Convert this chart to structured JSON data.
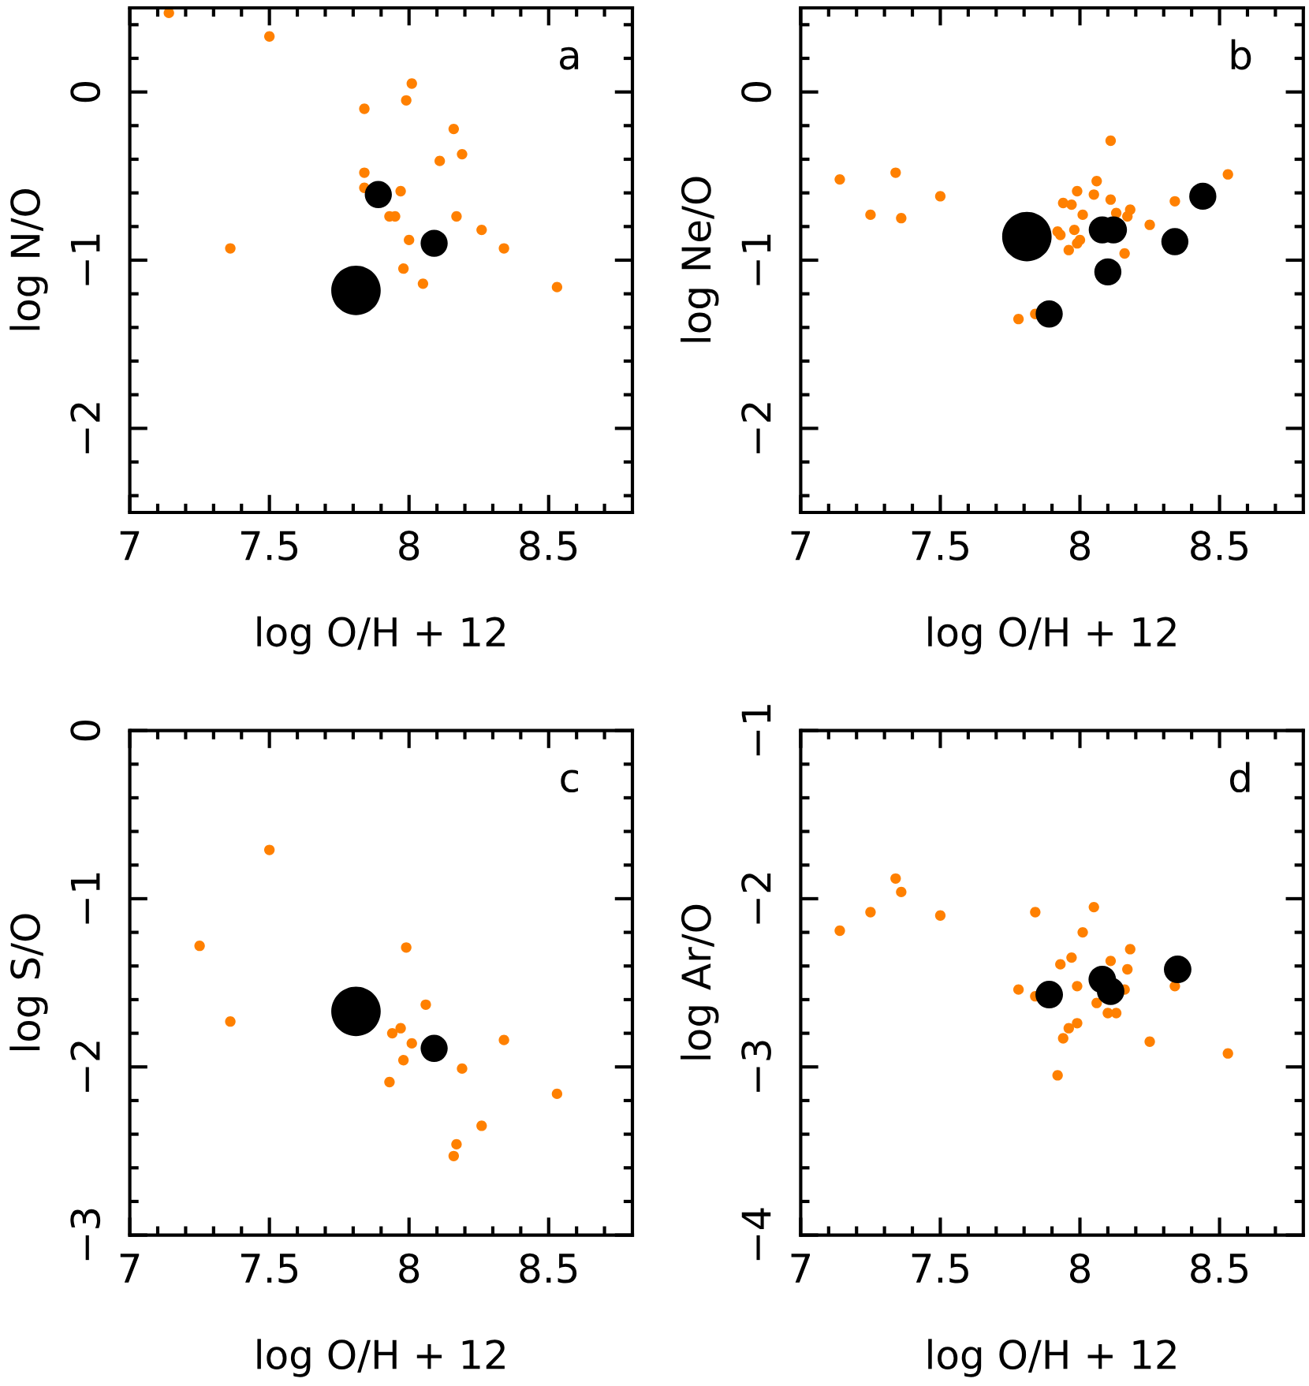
{
  "chart_data": [
    {
      "type": "scatter",
      "xlabel": "log O/H + 12",
      "ylabel": "log N/O",
      "annotations": [
        "a"
      ],
      "marker": "circle",
      "xlim": [
        7,
        8.8
      ],
      "ylim": [
        -2.5,
        0.5
      ],
      "xticks": [
        7,
        {
          "value": 7.1,
          "label": null
        },
        {
          "value": 7.2,
          "label": null
        },
        {
          "value": 7.3,
          "label": null
        },
        {
          "value": 7.4,
          "label": null
        },
        7.5,
        {
          "value": 7.6,
          "label": null
        },
        {
          "value": 7.7,
          "label": null
        },
        {
          "value": 7.8,
          "label": null
        },
        {
          "value": 7.9,
          "label": null
        },
        8,
        {
          "value": 8.1,
          "label": null
        },
        {
          "value": 8.2,
          "label": null
        },
        {
          "value": 8.3,
          "label": null
        },
        {
          "value": 8.4,
          "label": null
        },
        8.5,
        {
          "value": 8.6,
          "label": null
        },
        {
          "value": 8.7,
          "label": null
        }
      ],
      "yticks": [
        {
          "value": -2.4,
          "label": null
        },
        {
          "value": -2.2,
          "label": null
        },
        {
          "value": -2,
          "label": "−2"
        },
        {
          "value": -1.8,
          "label": null
        },
        {
          "value": -1.6,
          "label": null
        },
        {
          "value": -1.4,
          "label": null
        },
        {
          "value": -1.2,
          "label": null
        },
        {
          "value": -1,
          "label": "−1"
        },
        {
          "value": -0.8,
          "label": null
        },
        {
          "value": -0.6,
          "label": null
        },
        {
          "value": -0.4,
          "label": null
        },
        {
          "value": -0.2,
          "label": null
        },
        0,
        {
          "value": 0.2,
          "label": null
        },
        {
          "value": 0.4,
          "label": null
        }
      ],
      "series": [
        {
          "color": "#ff8000",
          "x": [
            7.14,
            7.5,
            8.01,
            7.99,
            7.84,
            8.16,
            8.19,
            8.11,
            7.84,
            7.84,
            7.97,
            7.93,
            7.95,
            8.17,
            8.26,
            8.0,
            8.34,
            7.36,
            7.98,
            8.05,
            8.53
          ],
          "values": [
            0.47,
            0.33,
            0.05,
            -0.05,
            -0.1,
            -0.22,
            -0.37,
            -0.41,
            -0.48,
            -0.57,
            -0.59,
            -0.74,
            -0.74,
            -0.74,
            -0.82,
            -0.88,
            -0.93,
            -0.93,
            -1.05,
            -1.14,
            -1.16
          ]
        },
        {
          "type": "bubble",
          "color": "#000000",
          "x": [
            7.81,
            7.89,
            8.09
          ],
          "values": [
            -1.18,
            -0.61,
            -0.9
          ],
          "sizes": [
            1,
            0.3,
            0.3
          ]
        }
      ]
    },
    {
      "type": "scatter",
      "xlabel": "log O/H + 12",
      "ylabel": "log Ne/O",
      "annotations": [
        "b"
      ],
      "marker": "circle",
      "xlim": [
        7,
        8.8
      ],
      "ylim": [
        -2.5,
        0.5
      ],
      "xticks": [
        7,
        {
          "value": 7.1,
          "label": null
        },
        {
          "value": 7.2,
          "label": null
        },
        {
          "value": 7.3,
          "label": null
        },
        {
          "value": 7.4,
          "label": null
        },
        7.5,
        {
          "value": 7.6,
          "label": null
        },
        {
          "value": 7.7,
          "label": null
        },
        {
          "value": 7.8,
          "label": null
        },
        {
          "value": 7.9,
          "label": null
        },
        8,
        {
          "value": 8.1,
          "label": null
        },
        {
          "value": 8.2,
          "label": null
        },
        {
          "value": 8.3,
          "label": null
        },
        {
          "value": 8.4,
          "label": null
        },
        8.5,
        {
          "value": 8.6,
          "label": null
        },
        {
          "value": 8.7,
          "label": null
        }
      ],
      "yticks": [
        {
          "value": -2.4,
          "label": null
        },
        {
          "value": -2.2,
          "label": null
        },
        {
          "value": -2,
          "label": "−2"
        },
        {
          "value": -1.8,
          "label": null
        },
        {
          "value": -1.6,
          "label": null
        },
        {
          "value": -1.4,
          "label": null
        },
        {
          "value": -1.2,
          "label": null
        },
        {
          "value": -1,
          "label": "−1"
        },
        {
          "value": -0.8,
          "label": null
        },
        {
          "value": -0.6,
          "label": null
        },
        {
          "value": -0.4,
          "label": null
        },
        {
          "value": -0.2,
          "label": null
        },
        0,
        {
          "value": 0.2,
          "label": null
        },
        {
          "value": 0.4,
          "label": null
        }
      ],
      "series": [
        {
          "color": "#ff8000",
          "x": [
            7.14,
            7.34,
            7.25,
            7.36,
            7.5,
            8.11,
            8.53,
            8.06,
            7.99,
            8.05,
            7.94,
            7.97,
            8.11,
            8.34,
            8.01,
            8.13,
            8.18,
            8.17,
            8.25,
            7.92,
            7.93,
            7.98,
            8.0,
            7.99,
            7.96,
            8.16,
            7.78,
            7.84
          ],
          "values": [
            -0.52,
            -0.48,
            -0.73,
            -0.75,
            -0.62,
            -0.29,
            -0.49,
            -0.53,
            -0.59,
            -0.61,
            -0.66,
            -0.67,
            -0.64,
            -0.65,
            -0.73,
            -0.72,
            -0.7,
            -0.74,
            -0.79,
            -0.83,
            -0.85,
            -0.82,
            -0.88,
            -0.9,
            -0.94,
            -0.96,
            -1.35,
            -1.32
          ]
        },
        {
          "type": "bubble",
          "color": "#000000",
          "x": [
            7.81,
            8.08,
            8.12,
            8.1,
            7.89,
            8.34,
            8.44
          ],
          "values": [
            -0.86,
            -0.82,
            -0.82,
            -1.07,
            -1.32,
            -0.89,
            -0.62
          ],
          "sizes": [
            1,
            0.3,
            0.3,
            0.3,
            0.3,
            0.3,
            0.3
          ]
        }
      ]
    },
    {
      "type": "scatter",
      "xlabel": "log O/H + 12",
      "ylabel": "log S/O",
      "annotations": [
        "c"
      ],
      "marker": "circle",
      "xlim": [
        7,
        8.8
      ],
      "ylim": [
        -3,
        0
      ],
      "xticks": [
        7,
        {
          "value": 7.1,
          "label": null
        },
        {
          "value": 7.2,
          "label": null
        },
        {
          "value": 7.3,
          "label": null
        },
        {
          "value": 7.4,
          "label": null
        },
        7.5,
        {
          "value": 7.6,
          "label": null
        },
        {
          "value": 7.7,
          "label": null
        },
        {
          "value": 7.8,
          "label": null
        },
        {
          "value": 7.9,
          "label": null
        },
        8,
        {
          "value": 8.1,
          "label": null
        },
        {
          "value": 8.2,
          "label": null
        },
        {
          "value": 8.3,
          "label": null
        },
        {
          "value": 8.4,
          "label": null
        },
        8.5,
        {
          "value": 8.6,
          "label": null
        },
        {
          "value": 8.7,
          "label": null
        }
      ],
      "yticks": [
        {
          "value": -3,
          "label": "−3"
        },
        {
          "value": -2.8,
          "label": null
        },
        {
          "value": -2.6,
          "label": null
        },
        {
          "value": -2.4,
          "label": null
        },
        {
          "value": -2.2,
          "label": null
        },
        {
          "value": -2,
          "label": "−2"
        },
        {
          "value": -1.8,
          "label": null
        },
        {
          "value": -1.6,
          "label": null
        },
        {
          "value": -1.4,
          "label": null
        },
        {
          "value": -1.2,
          "label": null
        },
        {
          "value": -1,
          "label": "−1"
        },
        {
          "value": -0.8,
          "label": null
        },
        {
          "value": -0.6,
          "label": null
        },
        {
          "value": -0.4,
          "label": null
        },
        {
          "value": -0.2,
          "label": null
        },
        0
      ],
      "series": [
        {
          "color": "#ff8000",
          "x": [
            7.5,
            7.25,
            7.99,
            7.36,
            8.06,
            7.97,
            7.94,
            8.01,
            7.98,
            7.93,
            8.19,
            8.34,
            8.53,
            8.26,
            8.17,
            8.16
          ],
          "values": [
            -0.71,
            -1.28,
            -1.29,
            -1.73,
            -1.63,
            -1.77,
            -1.8,
            -1.86,
            -1.96,
            -2.09,
            -2.01,
            -1.84,
            -2.16,
            -2.35,
            -2.46,
            -2.53
          ]
        },
        {
          "type": "bubble",
          "color": "#000000",
          "x": [
            7.81,
            8.09
          ],
          "values": [
            -1.67,
            -1.89
          ],
          "sizes": [
            1,
            0.3
          ]
        }
      ]
    },
    {
      "type": "scatter",
      "xlabel": "log O/H + 12",
      "ylabel": "log Ar/O",
      "annotations": [
        "d"
      ],
      "marker": "circle",
      "xlim": [
        7,
        8.8
      ],
      "ylim": [
        -4,
        -1
      ],
      "xticks": [
        7,
        {
          "value": 7.1,
          "label": null
        },
        {
          "value": 7.2,
          "label": null
        },
        {
          "value": 7.3,
          "label": null
        },
        {
          "value": 7.4,
          "label": null
        },
        7.5,
        {
          "value": 7.6,
          "label": null
        },
        {
          "value": 7.7,
          "label": null
        },
        {
          "value": 7.8,
          "label": null
        },
        {
          "value": 7.9,
          "label": null
        },
        8,
        {
          "value": 8.1,
          "label": null
        },
        {
          "value": 8.2,
          "label": null
        },
        {
          "value": 8.3,
          "label": null
        },
        {
          "value": 8.4,
          "label": null
        },
        8.5,
        {
          "value": 8.6,
          "label": null
        },
        {
          "value": 8.7,
          "label": null
        }
      ],
      "yticks": [
        {
          "value": -4,
          "label": "−4"
        },
        {
          "value": -3.8,
          "label": null
        },
        {
          "value": -3.6,
          "label": null
        },
        {
          "value": -3.4,
          "label": null
        },
        {
          "value": -3.2,
          "label": null
        },
        {
          "value": -3,
          "label": "−3"
        },
        {
          "value": -2.8,
          "label": null
        },
        {
          "value": -2.6,
          "label": null
        },
        {
          "value": -2.4,
          "label": null
        },
        {
          "value": -2.2,
          "label": null
        },
        {
          "value": -2,
          "label": "−2"
        },
        {
          "value": -1.8,
          "label": null
        },
        {
          "value": -1.6,
          "label": null
        },
        {
          "value": -1.4,
          "label": null
        },
        {
          "value": -1.2,
          "label": null
        },
        {
          "value": -1,
          "label": "−1"
        }
      ],
      "series": [
        {
          "color": "#ff8000",
          "x": [
            7.14,
            7.25,
            7.34,
            7.36,
            7.5,
            7.84,
            8.05,
            8.01,
            8.18,
            7.97,
            7.93,
            8.11,
            8.17,
            7.99,
            7.78,
            7.84,
            8.16,
            8.06,
            8.1,
            8.13,
            7.99,
            7.96,
            7.94,
            8.25,
            8.53,
            7.92,
            8.34
          ],
          "values": [
            -2.19,
            -2.08,
            -1.88,
            -1.96,
            -2.1,
            -2.08,
            -2.05,
            -2.2,
            -2.3,
            -2.35,
            -2.39,
            -2.37,
            -2.42,
            -2.52,
            -2.54,
            -2.58,
            -2.54,
            -2.62,
            -2.68,
            -2.68,
            -2.74,
            -2.77,
            -2.83,
            -2.85,
            -2.92,
            -3.05,
            -2.52
          ]
        },
        {
          "color": "#000000",
          "x": [
            7.89,
            8.08,
            8.11,
            8.35
          ],
          "values": [
            -2.57,
            -2.48,
            -2.55,
            -2.42
          ]
        }
      ]
    }
  ]
}
